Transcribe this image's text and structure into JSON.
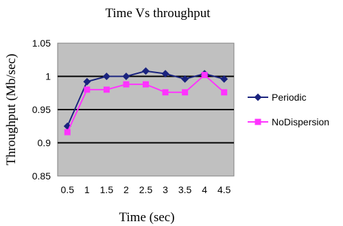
{
  "chart_data": {
    "type": "line",
    "title": "Time Vs throughput",
    "xlabel": "Time (sec)",
    "ylabel": "Throughput (Mb/sec)",
    "categories": [
      "0.5",
      "1",
      "1.5",
      "2",
      "2.5",
      "3",
      "3.5",
      "4",
      "4.5"
    ],
    "ylim": [
      0.85,
      1.05
    ],
    "yticks": [
      "0.85",
      "0.9",
      "0.95",
      "1",
      "1.05"
    ],
    "grid": true,
    "legend_position": "right",
    "series": [
      {
        "name": "Periodic",
        "color": "#1a237e",
        "marker": "diamond",
        "values": [
          0.925,
          0.992,
          1.0,
          1.0,
          1.008,
          1.004,
          0.996,
          1.004,
          0.996
        ]
      },
      {
        "name": "NoDispersion",
        "color": "#ff33ff",
        "marker": "square",
        "values": [
          0.916,
          0.98,
          0.98,
          0.988,
          0.988,
          0.976,
          0.976,
          1.002,
          0.976
        ]
      }
    ]
  }
}
